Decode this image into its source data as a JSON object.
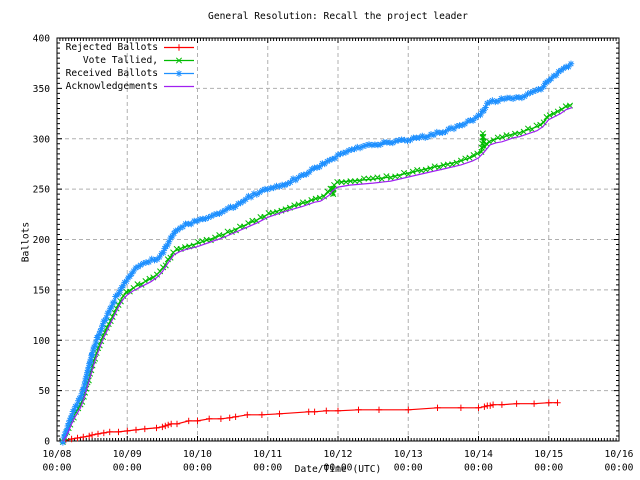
{
  "chart_data": {
    "type": "line",
    "title": "General Resolution: Recall the project leader",
    "xlabel": "Date/Time (UTC)",
    "ylabel": "Ballots",
    "x_unit": "hours since 10/08 00:00 UTC",
    "xlim_hours": [
      0,
      192
    ],
    "ylim": [
      0,
      400
    ],
    "grid": true,
    "legend_position": "top-left-inside",
    "minor_tick_x_hours": 1,
    "minor_tick_y": 5,
    "colors": {
      "background": "#ffffff",
      "border": "#000000",
      "grid": "#b0b0b0",
      "text": "#000000"
    },
    "y_ticks": [
      0,
      50,
      100,
      150,
      200,
      250,
      300,
      350,
      400
    ],
    "x_ticks": [
      {
        "hours": 0,
        "date": "10/08",
        "time": "00:00"
      },
      {
        "hours": 24,
        "date": "10/09",
        "time": "00:00"
      },
      {
        "hours": 48,
        "date": "10/10",
        "time": "00:00"
      },
      {
        "hours": 72,
        "date": "10/11",
        "time": "00:00"
      },
      {
        "hours": 96,
        "date": "10/12",
        "time": "00:00"
      },
      {
        "hours": 120,
        "date": "10/13",
        "time": "00:00"
      },
      {
        "hours": 144,
        "date": "10/14",
        "time": "00:00"
      },
      {
        "hours": 168,
        "date": "10/15",
        "time": "00:00"
      },
      {
        "hours": 192,
        "date": "10/16",
        "time": "00:00"
      }
    ],
    "series": [
      {
        "name": "Rejected Ballots",
        "color": "#ff0000",
        "marker": "plus",
        "marker_mode": "points",
        "marker_step_px": 0,
        "points": [
          [
            3,
            1
          ],
          [
            5,
            2
          ],
          [
            7,
            3
          ],
          [
            9,
            4
          ],
          [
            11,
            5
          ],
          [
            12,
            6
          ],
          [
            14,
            7
          ],
          [
            16,
            8
          ],
          [
            18,
            9
          ],
          [
            21,
            9
          ],
          [
            24,
            10
          ],
          [
            27,
            11
          ],
          [
            30,
            12
          ],
          [
            34,
            13
          ],
          [
            36,
            14
          ],
          [
            37,
            15
          ],
          [
            38,
            16
          ],
          [
            39,
            17
          ],
          [
            41,
            17
          ],
          [
            45,
            20
          ],
          [
            48,
            20
          ],
          [
            52,
            22
          ],
          [
            56,
            22
          ],
          [
            59,
            23
          ],
          [
            61,
            24
          ],
          [
            65,
            26
          ],
          [
            70,
            26
          ],
          [
            76,
            27
          ],
          [
            86,
            29
          ],
          [
            88,
            29
          ],
          [
            92,
            30
          ],
          [
            96,
            30
          ],
          [
            103,
            31
          ],
          [
            110,
            31
          ],
          [
            120,
            31
          ],
          [
            130,
            33
          ],
          [
            138,
            33
          ],
          [
            144,
            33
          ],
          [
            146,
            34
          ],
          [
            147,
            35
          ],
          [
            148,
            35
          ],
          [
            149,
            36
          ],
          [
            152,
            36
          ],
          [
            157,
            37
          ],
          [
            163,
            37
          ],
          [
            168,
            38
          ],
          [
            171,
            38
          ]
        ]
      },
      {
        "name": "Vote Tallied,",
        "color": "#00bb00",
        "marker": "cross",
        "marker_mode": "dense",
        "marker_step_px": 4.5,
        "points": [
          [
            2,
            0
          ],
          [
            3,
            5
          ],
          [
            4,
            12
          ],
          [
            5,
            20
          ],
          [
            6,
            26
          ],
          [
            7,
            31
          ],
          [
            8,
            36
          ],
          [
            9,
            43
          ],
          [
            10,
            53
          ],
          [
            11,
            63
          ],
          [
            12,
            73
          ],
          [
            13,
            83
          ],
          [
            14,
            91
          ],
          [
            15,
            99
          ],
          [
            16,
            106
          ],
          [
            17,
            112
          ],
          [
            18,
            118
          ],
          [
            19,
            124
          ],
          [
            20,
            130
          ],
          [
            21,
            136
          ],
          [
            22,
            141
          ],
          [
            23,
            145
          ],
          [
            24,
            148
          ],
          [
            26,
            152
          ],
          [
            28,
            155
          ],
          [
            30,
            158
          ],
          [
            32,
            161
          ],
          [
            34,
            165
          ],
          [
            36,
            171
          ],
          [
            37,
            175
          ],
          [
            38,
            180
          ],
          [
            39,
            184
          ],
          [
            40,
            188
          ],
          [
            42,
            191
          ],
          [
            44,
            193
          ],
          [
            48,
            196
          ],
          [
            52,
            200
          ],
          [
            56,
            204
          ],
          [
            60,
            209
          ],
          [
            64,
            214
          ],
          [
            68,
            219
          ],
          [
            72,
            225
          ],
          [
            78,
            231
          ],
          [
            84,
            236
          ],
          [
            88,
            240
          ],
          [
            90,
            242
          ],
          [
            92,
            245
          ],
          [
            93,
            248
          ],
          [
            94,
            252
          ],
          [
            94.3,
            243
          ],
          [
            94.6,
            253
          ],
          [
            95,
            255
          ],
          [
            96,
            257
          ],
          [
            100,
            258
          ],
          [
            104,
            259
          ],
          [
            108,
            260
          ],
          [
            114,
            262
          ],
          [
            120,
            266
          ],
          [
            126,
            270
          ],
          [
            132,
            274
          ],
          [
            138,
            278
          ],
          [
            142,
            282
          ],
          [
            144,
            286
          ],
          [
            145,
            287
          ],
          [
            145.5,
            305
          ],
          [
            146,
            291
          ],
          [
            147,
            295
          ],
          [
            148,
            298
          ],
          [
            150,
            300
          ],
          [
            152,
            301
          ],
          [
            154,
            303
          ],
          [
            156,
            305
          ],
          [
            158,
            306
          ],
          [
            160,
            308
          ],
          [
            162,
            310
          ],
          [
            164,
            312
          ],
          [
            166,
            316
          ],
          [
            168,
            323
          ],
          [
            170,
            326
          ],
          [
            172,
            329
          ],
          [
            174,
            332
          ],
          [
            176,
            334
          ]
        ]
      },
      {
        "name": "Received Ballots",
        "color": "#1e90ff",
        "marker": "asterisk",
        "marker_mode": "dense",
        "marker_step_px": 3,
        "points": [
          [
            2,
            0
          ],
          [
            3,
            8
          ],
          [
            4,
            17
          ],
          [
            5,
            25
          ],
          [
            6,
            32
          ],
          [
            7,
            37
          ],
          [
            8,
            43
          ],
          [
            9,
            51
          ],
          [
            10,
            63
          ],
          [
            11,
            75
          ],
          [
            12,
            87
          ],
          [
            13,
            96
          ],
          [
            14,
            104
          ],
          [
            15,
            111
          ],
          [
            16,
            118
          ],
          [
            17,
            124
          ],
          [
            18,
            130
          ],
          [
            19,
            136
          ],
          [
            20,
            142
          ],
          [
            21,
            147
          ],
          [
            22,
            152
          ],
          [
            23,
            157
          ],
          [
            24,
            161
          ],
          [
            26,
            169
          ],
          [
            28,
            174
          ],
          [
            30,
            177
          ],
          [
            32,
            179
          ],
          [
            34,
            181
          ],
          [
            36,
            186
          ],
          [
            37,
            192
          ],
          [
            38,
            197
          ],
          [
            39,
            202
          ],
          [
            40,
            206
          ],
          [
            41,
            210
          ],
          [
            42,
            212
          ],
          [
            44,
            215
          ],
          [
            48,
            218
          ],
          [
            52,
            222
          ],
          [
            56,
            227
          ],
          [
            60,
            232
          ],
          [
            63,
            238
          ],
          [
            66,
            243
          ],
          [
            69,
            246
          ],
          [
            72,
            250
          ],
          [
            76,
            253
          ],
          [
            80,
            258
          ],
          [
            84,
            264
          ],
          [
            86,
            267
          ],
          [
            88,
            270
          ],
          [
            90,
            273
          ],
          [
            92,
            277
          ],
          [
            94,
            281
          ],
          [
            96,
            283
          ],
          [
            98,
            286
          ],
          [
            100,
            288
          ],
          [
            102,
            290
          ],
          [
            104,
            292
          ],
          [
            108,
            294
          ],
          [
            114,
            296
          ],
          [
            120,
            299
          ],
          [
            124,
            301
          ],
          [
            128,
            304
          ],
          [
            132,
            307
          ],
          [
            136,
            311
          ],
          [
            140,
            316
          ],
          [
            144,
            322
          ],
          [
            145,
            325
          ],
          [
            146,
            330
          ],
          [
            147,
            334
          ],
          [
            148,
            336
          ],
          [
            150,
            338
          ],
          [
            153,
            339
          ],
          [
            156,
            340
          ],
          [
            158,
            341
          ],
          [
            160,
            343
          ],
          [
            162,
            345
          ],
          [
            164,
            348
          ],
          [
            166,
            351
          ],
          [
            168,
            359
          ],
          [
            170,
            363
          ],
          [
            172,
            367
          ],
          [
            174,
            371
          ],
          [
            176,
            375
          ]
        ]
      },
      {
        "name": "Acknowledgements",
        "color": "#a020f0",
        "marker": "none",
        "marker_mode": "none",
        "marker_step_px": 0,
        "points": [
          [
            2,
            0
          ],
          [
            3,
            4
          ],
          [
            4,
            10
          ],
          [
            5,
            17
          ],
          [
            6,
            23
          ],
          [
            7,
            28
          ],
          [
            8,
            33
          ],
          [
            9,
            40
          ],
          [
            10,
            50
          ],
          [
            11,
            60
          ],
          [
            12,
            70
          ],
          [
            13,
            80
          ],
          [
            14,
            88
          ],
          [
            15,
            96
          ],
          [
            16,
            103
          ],
          [
            17,
            109
          ],
          [
            18,
            115
          ],
          [
            19,
            121
          ],
          [
            20,
            127
          ],
          [
            21,
            133
          ],
          [
            22,
            138
          ],
          [
            23,
            142
          ],
          [
            24,
            145
          ],
          [
            26,
            149
          ],
          [
            28,
            152
          ],
          [
            30,
            155
          ],
          [
            32,
            158
          ],
          [
            34,
            162
          ],
          [
            36,
            168
          ],
          [
            38,
            177
          ],
          [
            40,
            185
          ],
          [
            42,
            188
          ],
          [
            44,
            190
          ],
          [
            48,
            193
          ],
          [
            52,
            197
          ],
          [
            56,
            201
          ],
          [
            60,
            206
          ],
          [
            64,
            211
          ],
          [
            68,
            216
          ],
          [
            72,
            222
          ],
          [
            78,
            228
          ],
          [
            84,
            233
          ],
          [
            88,
            237
          ],
          [
            90,
            238
          ],
          [
            92,
            242
          ],
          [
            93,
            244
          ],
          [
            94,
            248
          ],
          [
            95,
            250
          ],
          [
            96,
            252
          ],
          [
            100,
            254
          ],
          [
            104,
            255
          ],
          [
            108,
            256
          ],
          [
            114,
            258
          ],
          [
            120,
            262
          ],
          [
            126,
            266
          ],
          [
            132,
            270
          ],
          [
            138,
            274
          ],
          [
            142,
            278
          ],
          [
            144,
            281
          ],
          [
            146,
            287
          ],
          [
            148,
            294
          ],
          [
            150,
            296
          ],
          [
            152,
            297
          ],
          [
            154,
            299
          ],
          [
            156,
            301
          ],
          [
            158,
            302
          ],
          [
            160,
            304
          ],
          [
            162,
            306
          ],
          [
            164,
            308
          ],
          [
            166,
            312
          ],
          [
            168,
            319
          ],
          [
            170,
            322
          ],
          [
            172,
            325
          ],
          [
            174,
            329
          ],
          [
            176,
            331
          ]
        ]
      }
    ]
  }
}
